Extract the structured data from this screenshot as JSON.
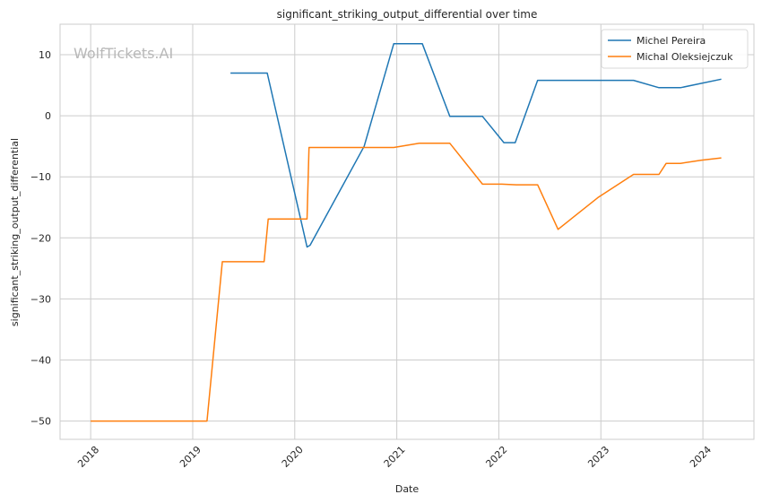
{
  "chart_data": {
    "type": "line",
    "title": "significant_striking_output_differential over time",
    "xlabel": "Date",
    "ylabel": "significant_striking_output_differential",
    "watermark": "WolfTickets.AI",
    "xlim": [
      2017.7,
      2024.5
    ],
    "ylim": [
      -53,
      15
    ],
    "x_ticks": [
      2018,
      2019,
      2020,
      2021,
      2022,
      2023,
      2024
    ],
    "x_tick_labels": [
      "2018",
      "2019",
      "2020",
      "2021",
      "2022",
      "2023",
      "2024"
    ],
    "y_ticks": [
      10,
      0,
      -10,
      -20,
      -30,
      -40,
      -50
    ],
    "y_tick_labels": [
      "10",
      "0",
      "−10",
      "−20",
      "−30",
      "−40",
      "−50"
    ],
    "grid": true,
    "legend_position": "top-right",
    "series": [
      {
        "name": "Michel Pereira",
        "color": "#1f77b4",
        "points": [
          [
            2019.37,
            7.0
          ],
          [
            2019.73,
            7.0
          ],
          [
            2020.12,
            -21.5
          ],
          [
            2020.15,
            -21.2
          ],
          [
            2020.68,
            -5.0
          ],
          [
            2020.97,
            11.8
          ],
          [
            2021.25,
            11.8
          ],
          [
            2021.52,
            -0.1
          ],
          [
            2021.84,
            -0.1
          ],
          [
            2022.05,
            -4.4
          ],
          [
            2022.16,
            -4.4
          ],
          [
            2022.38,
            5.8
          ],
          [
            2023.32,
            5.8
          ],
          [
            2023.57,
            4.6
          ],
          [
            2023.78,
            4.6
          ],
          [
            2024.18,
            6.0
          ]
        ]
      },
      {
        "name": "Michal Oleksiejczuk",
        "color": "#ff7f0e",
        "points": [
          [
            2018.0,
            -50.0
          ],
          [
            2019.14,
            -50.0
          ],
          [
            2019.29,
            -23.9
          ],
          [
            2019.7,
            -23.9
          ],
          [
            2019.74,
            -16.9
          ],
          [
            2020.12,
            -16.9
          ],
          [
            2020.14,
            -5.2
          ],
          [
            2020.97,
            -5.2
          ],
          [
            2021.22,
            -4.5
          ],
          [
            2021.52,
            -4.5
          ],
          [
            2021.84,
            -11.2
          ],
          [
            2022.03,
            -11.2
          ],
          [
            2022.17,
            -11.3
          ],
          [
            2022.38,
            -11.3
          ],
          [
            2022.58,
            -18.6
          ],
          [
            2022.97,
            -13.4
          ],
          [
            2023.32,
            -9.6
          ],
          [
            2023.57,
            -9.6
          ],
          [
            2023.64,
            -7.8
          ],
          [
            2023.78,
            -7.8
          ],
          [
            2023.98,
            -7.3
          ],
          [
            2024.18,
            -6.9
          ]
        ]
      }
    ]
  }
}
